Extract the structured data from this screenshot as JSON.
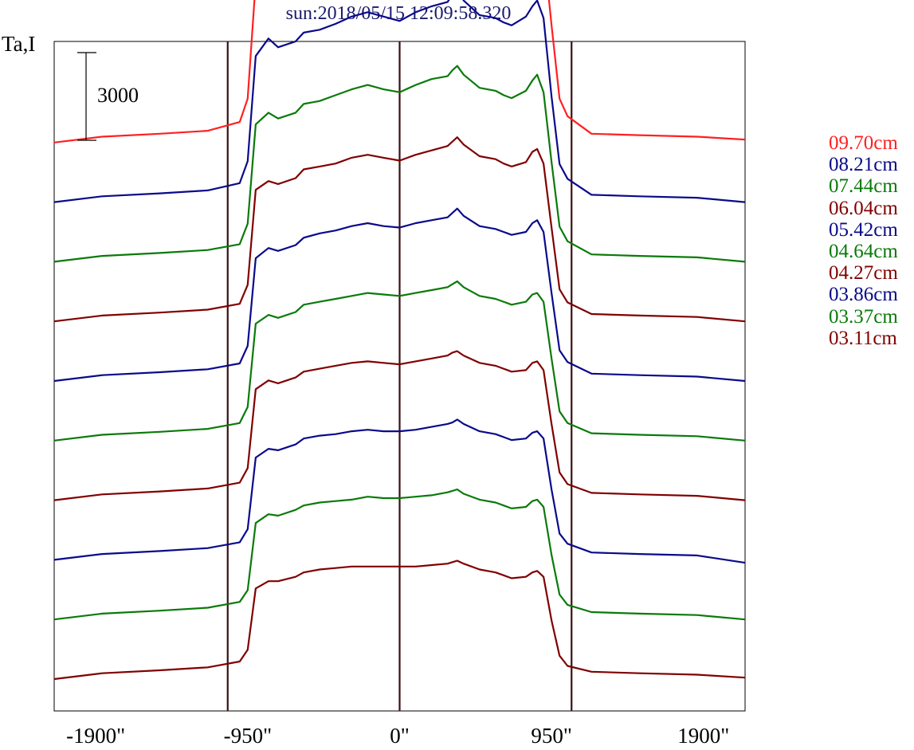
{
  "title": "sun:2018/05/15 12:09:58.320",
  "y_label": "Ta,I",
  "scale_bar": {
    "label": "3000",
    "value": 3000
  },
  "legend": [
    {
      "label": "09.70cm",
      "color": "#ff2020"
    },
    {
      "label": "08.21cm",
      "color": "#0a0a8a"
    },
    {
      "label": "07.44cm",
      "color": "#0a7a0a"
    },
    {
      "label": "06.04cm",
      "color": "#800000"
    },
    {
      "label": "05.42cm",
      "color": "#0a0a8a"
    },
    {
      "label": "04.64cm",
      "color": "#0a7a0a"
    },
    {
      "label": "04.27cm",
      "color": "#800000"
    },
    {
      "label": "03.86cm",
      "color": "#0a0a8a"
    },
    {
      "label": "03.37cm",
      "color": "#0a7a0a"
    },
    {
      "label": "03.11cm",
      "color": "#800000"
    }
  ],
  "chart_data": {
    "type": "line",
    "title": "sun:2018/05/15 12:09:58.320",
    "ylabel": "Ta,I",
    "xlim": [
      -2160,
      2160
    ],
    "x_ticks": [
      {
        "value": -1900,
        "label": "-1900\""
      },
      {
        "value": -950,
        "label": "-950\""
      },
      {
        "value": 0,
        "label": "0\""
      },
      {
        "value": 950,
        "label": "950\""
      },
      {
        "value": 1900,
        "label": "1900\""
      }
    ],
    "vertical_lines": [
      -1075,
      0,
      1075
    ],
    "offset_step": 2040,
    "x": [
      -2160,
      -1860,
      -1500,
      -1200,
      -1000,
      -950,
      -900,
      -820,
      -760,
      -650,
      -600,
      -500,
      -400,
      -300,
      -200,
      -100,
      0,
      100,
      200,
      300,
      330,
      360,
      400,
      500,
      600,
      650,
      700,
      790,
      830,
      860,
      900,
      950,
      1000,
      1050,
      1200,
      1500,
      1860,
      2160
    ],
    "series": [
      {
        "name": "09.70cm",
        "values": [
          0,
          200,
          300,
          400,
          700,
          1500,
          5500,
          6400,
          5900,
          6000,
          6300,
          6400,
          6500,
          6750,
          6900,
          6750,
          6600,
          6900,
          7150,
          7400,
          7700,
          7950,
          7500,
          6900,
          6850,
          6700,
          6600,
          6800,
          7200,
          7300,
          6700,
          4000,
          1500,
          900,
          300,
          250,
          200,
          100
        ]
      },
      {
        "name": "08.21cm",
        "values": [
          0,
          200,
          300,
          400,
          650,
          1400,
          5000,
          5600,
          5300,
          5500,
          5800,
          5900,
          6100,
          6350,
          6500,
          6350,
          6200,
          6500,
          6700,
          6850,
          7100,
          7300,
          6900,
          6400,
          6300,
          6150,
          6050,
          6350,
          6700,
          6900,
          6300,
          3600,
          1300,
          800,
          250,
          200,
          150,
          0
        ]
      },
      {
        "name": "07.44cm",
        "values": [
          0,
          200,
          300,
          400,
          600,
          1300,
          4700,
          5100,
          4900,
          5100,
          5400,
          5500,
          5700,
          5900,
          6050,
          5900,
          5800,
          6050,
          6250,
          6350,
          6550,
          6700,
          6400,
          5950,
          5850,
          5700,
          5600,
          5850,
          6200,
          6400,
          5800,
          3400,
          1200,
          700,
          250,
          200,
          150,
          0
        ]
      },
      {
        "name": "06.04cm",
        "values": [
          0,
          200,
          300,
          400,
          600,
          1250,
          4500,
          4800,
          4700,
          4900,
          5200,
          5300,
          5400,
          5600,
          5700,
          5600,
          5500,
          5700,
          5850,
          6000,
          6150,
          6300,
          6050,
          5650,
          5550,
          5400,
          5300,
          5450,
          5800,
          5900,
          5400,
          3200,
          1100,
          650,
          250,
          200,
          150,
          0
        ]
      },
      {
        "name": "05.42cm",
        "values": [
          0,
          200,
          300,
          400,
          600,
          1200,
          4200,
          4550,
          4450,
          4650,
          4900,
          5050,
          5150,
          5300,
          5400,
          5300,
          5250,
          5400,
          5500,
          5600,
          5750,
          5900,
          5650,
          5300,
          5200,
          5100,
          5000,
          5100,
          5400,
          5500,
          5100,
          3000,
          1050,
          650,
          250,
          200,
          150,
          0
        ]
      },
      {
        "name": "04.64cm",
        "values": [
          0,
          200,
          300,
          400,
          600,
          1150,
          4000,
          4300,
          4200,
          4400,
          4650,
          4750,
          4850,
          4950,
          5050,
          5000,
          4950,
          5050,
          5150,
          5250,
          5350,
          5450,
          5250,
          4950,
          4850,
          4750,
          4650,
          4750,
          5000,
          5050,
          4750,
          2800,
          1000,
          600,
          250,
          200,
          150,
          0
        ]
      },
      {
        "name": "04.27cm",
        "values": [
          0,
          200,
          300,
          400,
          600,
          1100,
          3800,
          4100,
          4000,
          4200,
          4400,
          4500,
          4600,
          4700,
          4750,
          4700,
          4650,
          4750,
          4850,
          4950,
          5050,
          5100,
          4950,
          4700,
          4600,
          4500,
          4400,
          4450,
          4700,
          4750,
          4450,
          2600,
          950,
          550,
          250,
          200,
          150,
          0
        ]
      },
      {
        "name": "03.86cm",
        "values": [
          0,
          200,
          300,
          400,
          600,
          1050,
          3500,
          3800,
          3750,
          3950,
          4150,
          4250,
          4300,
          4400,
          4450,
          4400,
          4400,
          4450,
          4550,
          4650,
          4700,
          4800,
          4650,
          4400,
          4300,
          4200,
          4100,
          4150,
          4350,
          4400,
          4150,
          2400,
          900,
          550,
          250,
          200,
          150,
          -100
        ]
      },
      {
        "name": "03.37cm",
        "values": [
          0,
          200,
          300,
          400,
          600,
          1000,
          3300,
          3600,
          3550,
          3750,
          3900,
          4000,
          4050,
          4100,
          4200,
          4150,
          4150,
          4200,
          4250,
          4350,
          4400,
          4450,
          4300,
          4100,
          4000,
          3900,
          3800,
          3850,
          4050,
          4100,
          3850,
          2200,
          850,
          500,
          250,
          200,
          150,
          0
        ]
      },
      {
        "name": "03.11cm",
        "values": [
          0,
          200,
          300,
          400,
          600,
          1000,
          3100,
          3350,
          3350,
          3500,
          3650,
          3750,
          3800,
          3850,
          3850,
          3850,
          3850,
          3850,
          3900,
          3950,
          4000,
          4050,
          3950,
          3750,
          3650,
          3550,
          3450,
          3500,
          3650,
          3700,
          3500,
          2000,
          800,
          450,
          250,
          200,
          150,
          50
        ]
      }
    ]
  }
}
